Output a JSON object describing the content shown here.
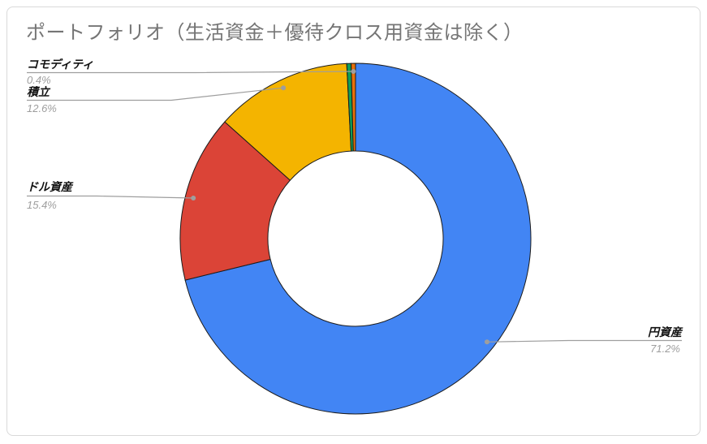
{
  "title": "ポートフォリオ（生活資金＋優待クロス用資金は除く）",
  "colors": {
    "title_text": "#757575",
    "label_text": "#111111",
    "percent_text": "#9e9e9e",
    "leader_line": "#9e9e9e",
    "slice_border": "#1b1b1b",
    "frame_border": "#d9d9d9",
    "background": "#ffffff"
  },
  "chart_data": {
    "type": "pie",
    "donut": true,
    "hole_ratio": 0.5,
    "title": "ポートフォリオ（生活資金＋優待クロス用資金は除く）",
    "unit": "%",
    "legend_position": "none",
    "labels_style": "callout-with-leader-lines",
    "slices": [
      {
        "label": "円資産",
        "value": 71.2,
        "pct_label": "71.2%",
        "color": "#4285F4"
      },
      {
        "label": "ドル資産",
        "value": 15.4,
        "pct_label": "15.4%",
        "color": "#DB4437"
      },
      {
        "label": "積立",
        "value": 12.6,
        "pct_label": "12.6%",
        "color": "#F4B400"
      },
      {
        "label": "",
        "value": 0.4,
        "pct_label": "",
        "color": "#0F9D58",
        "label_hidden": true
      },
      {
        "label": "コモディティ",
        "value": 0.4,
        "pct_label": "0.4%",
        "color": "#E8710A"
      }
    ]
  }
}
